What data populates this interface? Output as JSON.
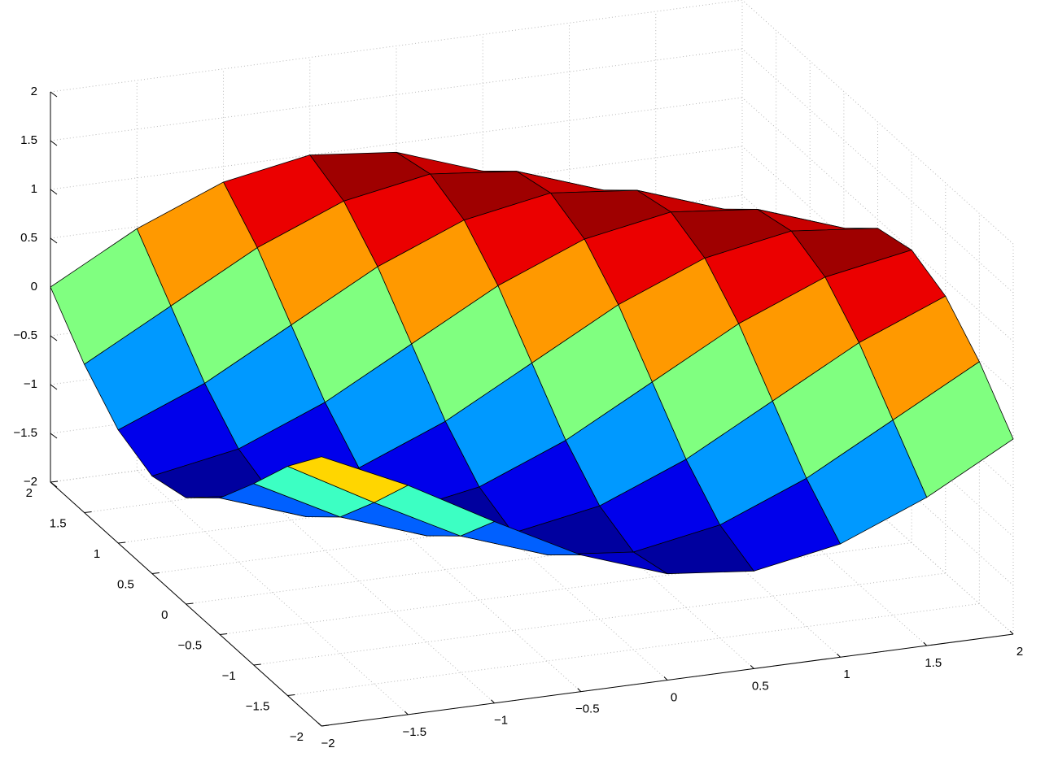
{
  "chart_data": {
    "type": "surface",
    "x": [
      -2,
      -1.5,
      -1,
      -0.5,
      0,
      0.5,
      1,
      1.5,
      2
    ],
    "y": [
      -2,
      -1.5,
      -1,
      -0.5,
      0,
      0.5,
      1,
      1.5,
      2
    ],
    "z": [
      [
        0.76,
        0.35,
        -0.14,
        -0.6,
        -0.91,
        -1.0,
        -0.84,
        -0.48,
        0
      ],
      [
        0.35,
        -0.14,
        -0.6,
        -0.91,
        -1.0,
        -0.84,
        -0.48,
        0,
        0.48
      ],
      [
        -0.14,
        -0.6,
        -0.91,
        -1.0,
        -0.84,
        -0.48,
        0,
        0.48,
        0.84
      ],
      [
        -0.6,
        -0.91,
        -1.0,
        -0.84,
        -0.48,
        0,
        0.48,
        0.84,
        1.0
      ],
      [
        -0.91,
        -1.0,
        -0.84,
        -0.48,
        0,
        0.48,
        0.84,
        1.0,
        0.91
      ],
      [
        -1.0,
        -0.84,
        -0.48,
        0,
        0.48,
        0.84,
        1.0,
        0.91,
        0.6
      ],
      [
        -0.84,
        -0.48,
        0,
        0.48,
        0.84,
        1.0,
        0.91,
        0.6,
        0.14
      ],
      [
        -0.48,
        0,
        0.48,
        0.84,
        1.0,
        0.91,
        0.6,
        0.14,
        -0.35
      ],
      [
        0,
        0.48,
        0.84,
        1.0,
        0.91,
        0.6,
        0.14,
        -0.35,
        -0.76
      ]
    ],
    "xlim": [
      -2,
      2
    ],
    "ylim": [
      -2,
      2
    ],
    "zlim": [
      -2,
      2
    ],
    "xticks": [
      {
        "value": -2,
        "label": "−2"
      },
      {
        "value": -1.5,
        "label": "−1.5"
      },
      {
        "value": -1,
        "label": "−1"
      },
      {
        "value": -0.5,
        "label": "−0.5"
      },
      0,
      0.5,
      1,
      1.5,
      2
    ],
    "yticks": [
      {
        "value": -2,
        "label": "−2"
      },
      {
        "value": -1.5,
        "label": "−1.5"
      },
      {
        "value": -1,
        "label": "−1"
      },
      {
        "value": -0.5,
        "label": "−0.5"
      },
      0,
      0.5,
      1,
      1.5,
      2
    ],
    "zticks": [
      {
        "value": -2,
        "label": "−2"
      },
      {
        "value": -1.5,
        "label": "−1.5"
      },
      {
        "value": -1,
        "label": "−1"
      },
      {
        "value": -0.5,
        "label": "−0.5"
      },
      0,
      0.5,
      1,
      1.5,
      2
    ],
    "grid": true,
    "colormap": "jet"
  }
}
